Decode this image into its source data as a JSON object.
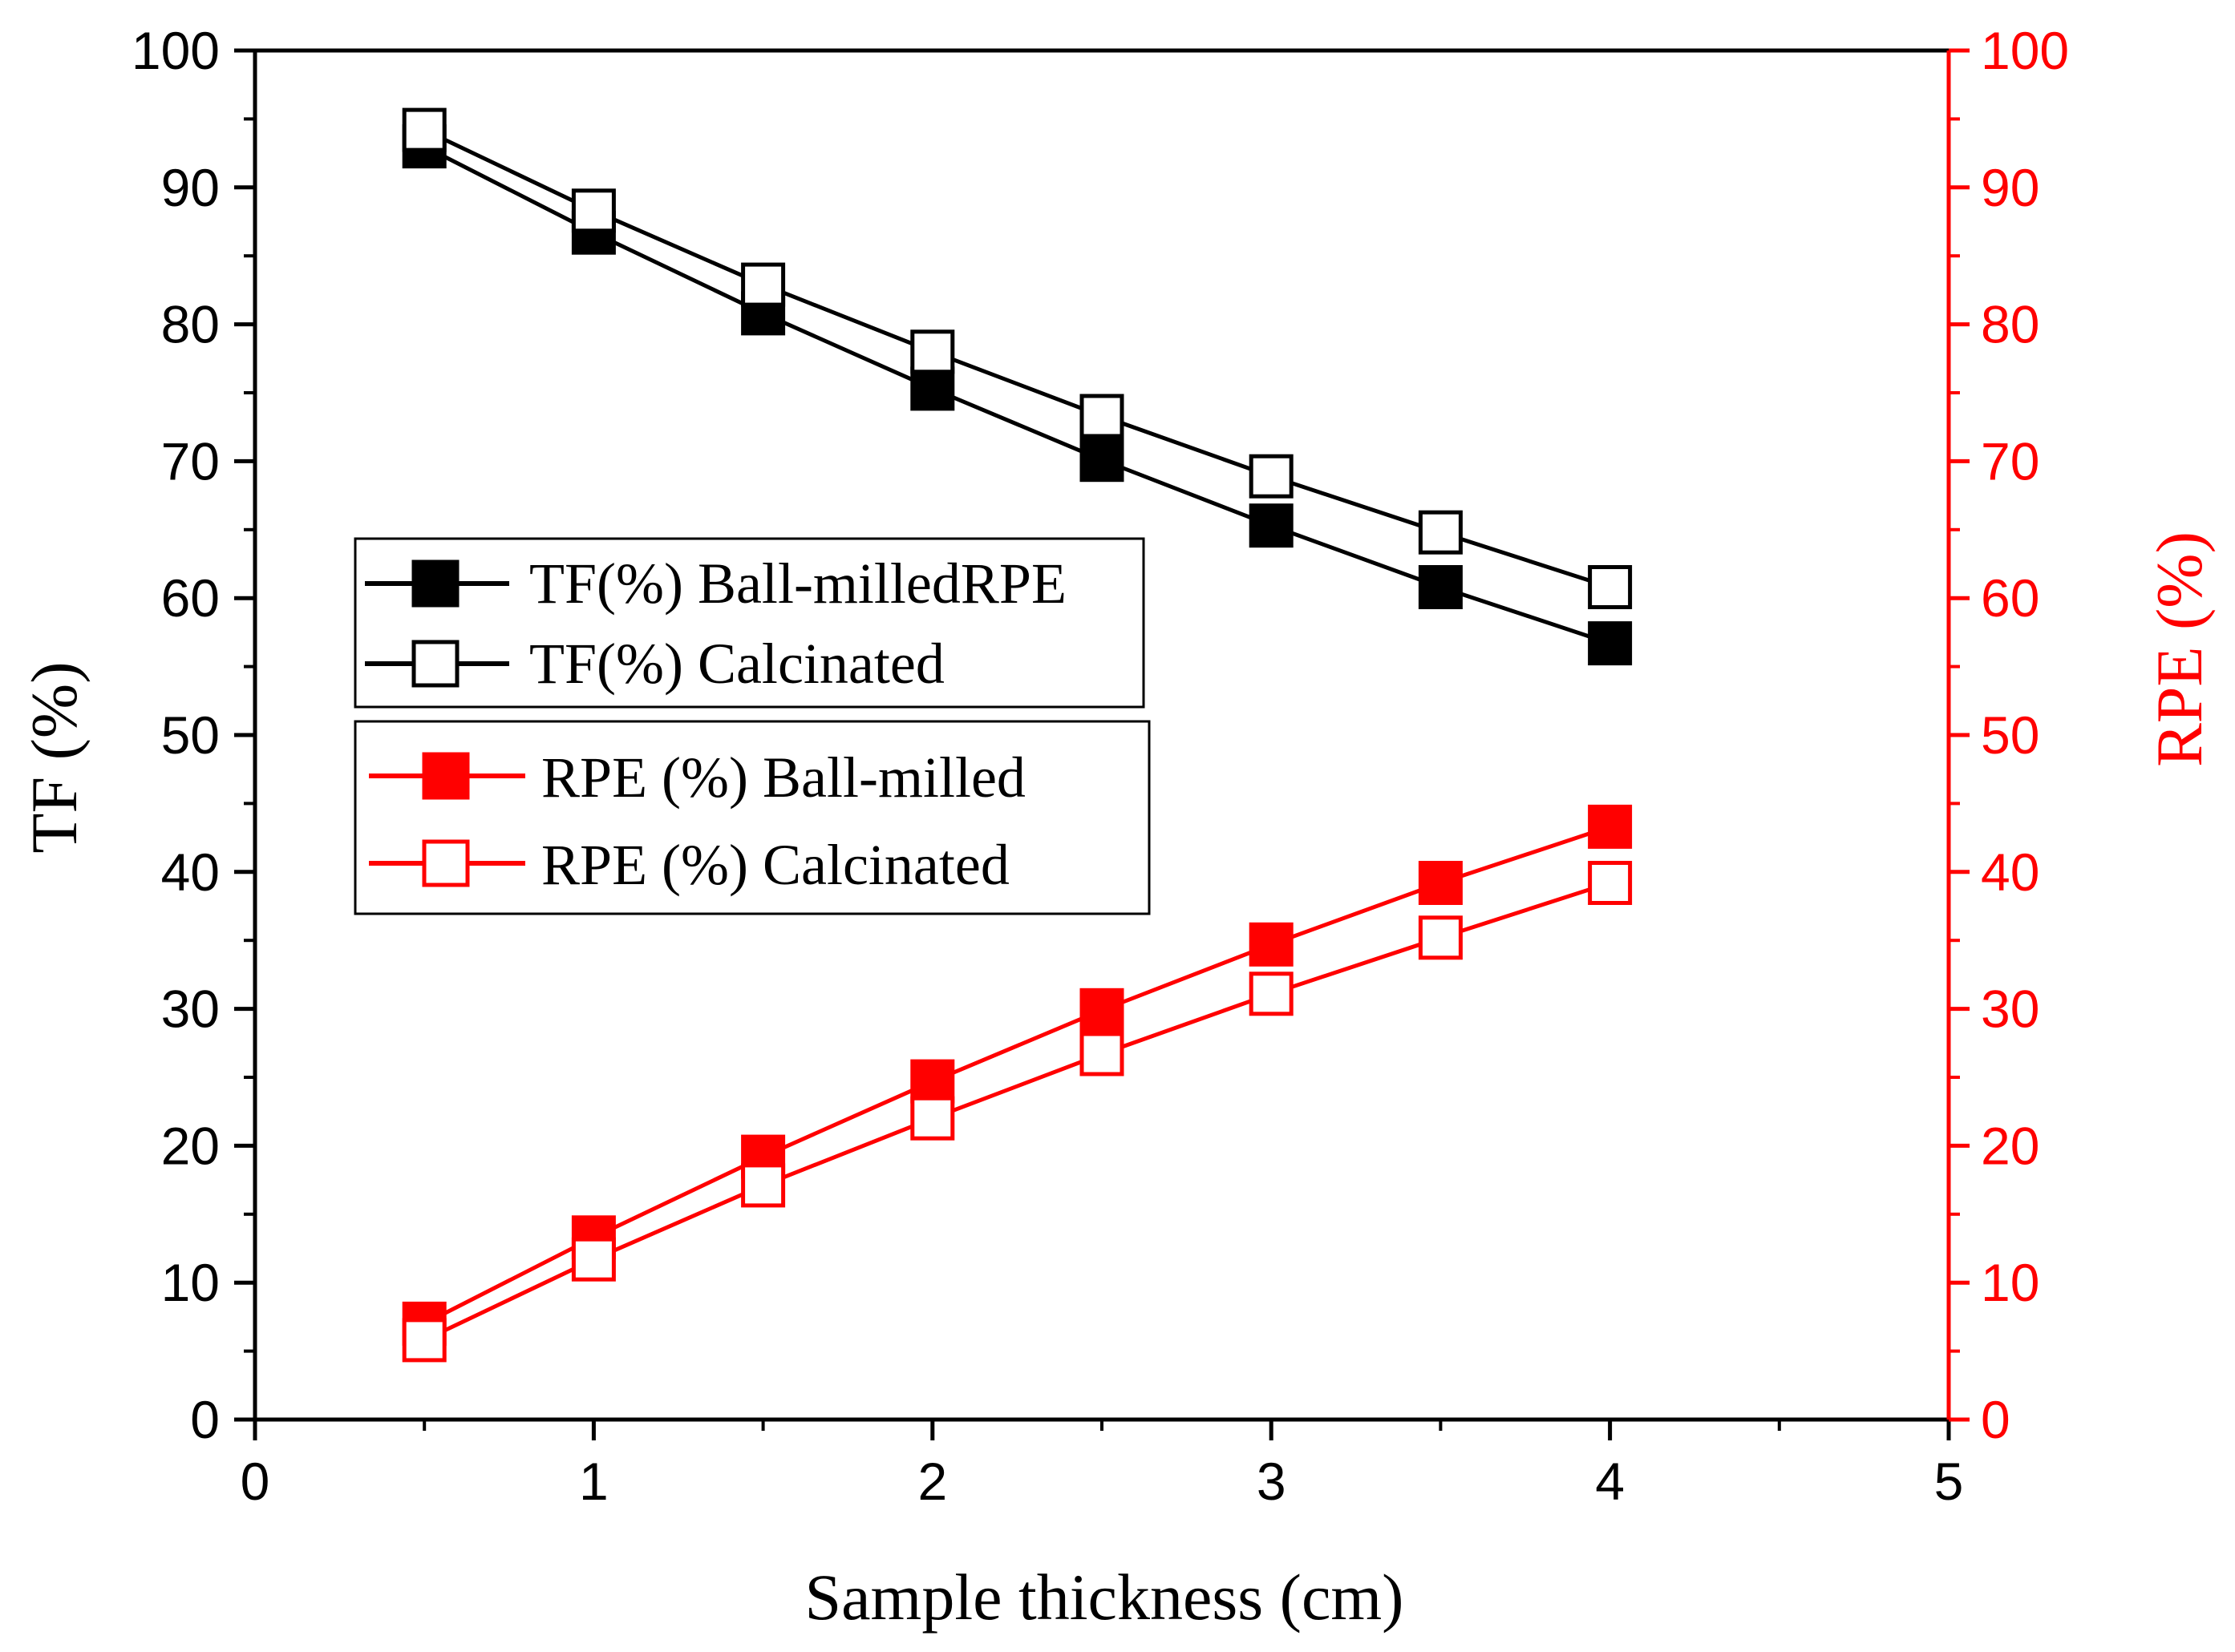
{
  "chart_data": {
    "type": "line",
    "title": "",
    "xlabel": "Sample thickness (cm)",
    "ylabel": "TF (%)",
    "y2label": "RPE (%)",
    "xlim": [
      0,
      5
    ],
    "ylim": [
      0,
      100
    ],
    "y2lim": [
      0,
      100
    ],
    "x_ticks": [
      "0",
      "1",
      "2",
      "3",
      "4",
      "5"
    ],
    "y_ticks": [
      "0",
      "10",
      "20",
      "30",
      "40",
      "50",
      "60",
      "70",
      "80",
      "90",
      "100"
    ],
    "y2_ticks": [
      "0",
      "10",
      "20",
      "30",
      "40",
      "50",
      "60",
      "70",
      "80",
      "90",
      "100"
    ],
    "x": [
      0.5,
      1.0,
      1.5,
      2.0,
      2.5,
      3.0,
      3.5,
      4.0
    ],
    "grid": false,
    "series": [
      {
        "name": "TF(%) Ball-milledRPE",
        "axis": "left",
        "color": "#000000",
        "marker": "filled-square",
        "values": [
          93.0,
          86.7,
          80.8,
          75.3,
          70.1,
          65.3,
          60.8,
          56.7
        ]
      },
      {
        "name": "TF(%) Calcinated",
        "axis": "left",
        "color": "#000000",
        "marker": "open-square",
        "values": [
          94.2,
          88.3,
          82.9,
          78.0,
          73.3,
          68.9,
          64.8,
          60.8
        ]
      },
      {
        "name": "RPE (%) Ball-milled",
        "axis": "right",
        "color": "#ff0000",
        "marker": "filled-square",
        "values": [
          7.0,
          13.3,
          19.2,
          24.7,
          29.9,
          34.7,
          39.2,
          43.3
        ]
      },
      {
        "name": "RPE (%) Calcinated",
        "axis": "right",
        "color": "#ff0000",
        "marker": "open-square",
        "values": [
          5.8,
          11.7,
          17.1,
          22.0,
          26.7,
          31.1,
          35.2,
          39.2
        ]
      }
    ],
    "legend": [
      {
        "position": "center-left",
        "entries": [
          "TF(%) Ball-milledRPE",
          "TF(%) Calcinated"
        ]
      },
      {
        "position": "center-left",
        "entries": [
          "RPE (%) Ball-milled",
          "RPE (%) Calcinated"
        ]
      }
    ],
    "colors": {
      "left_axis": "#000000",
      "right_axis": "#ff0000"
    }
  }
}
